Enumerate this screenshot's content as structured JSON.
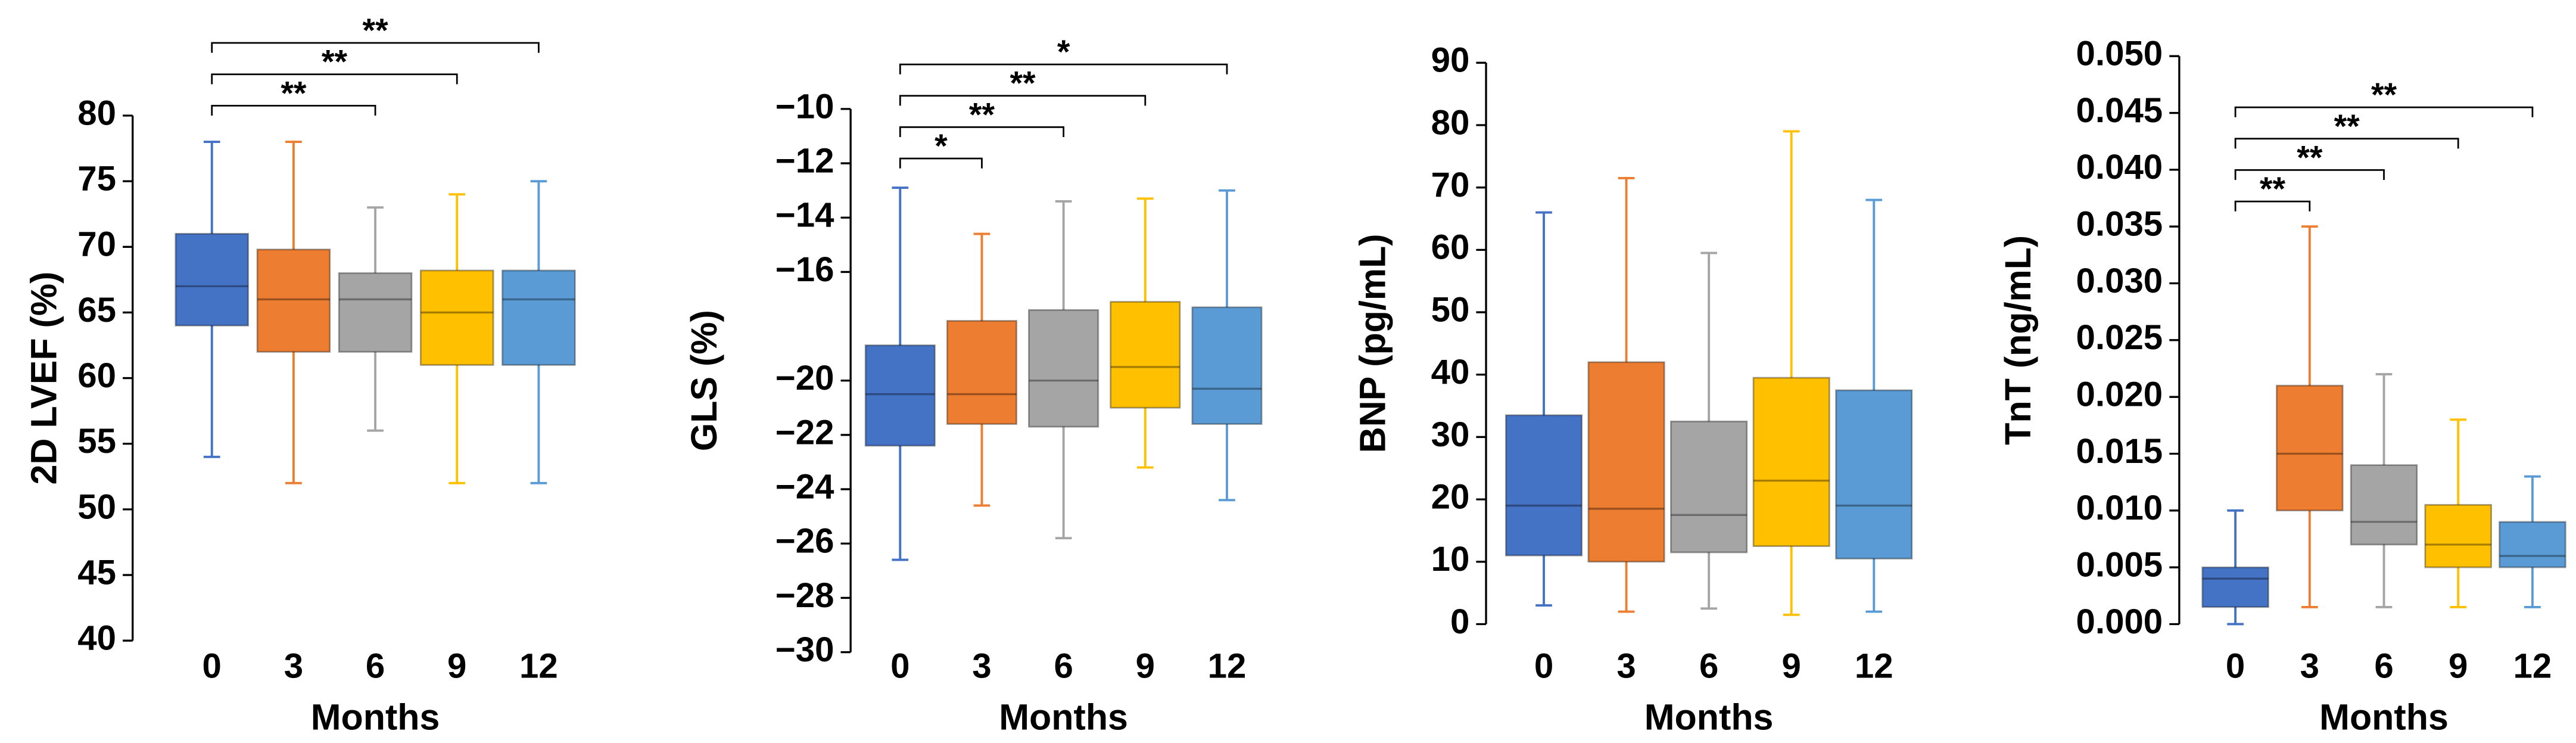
{
  "chart_data": [
    {
      "type": "box",
      "ylabel": "2D LVEF (%)",
      "xlabel": "Months",
      "categories": [
        "0",
        "3",
        "6",
        "9",
        "12"
      ],
      "colors": [
        "#4472c4",
        "#ed7d31",
        "#a5a5a5",
        "#ffc000",
        "#5b9bd5"
      ],
      "boxes": [
        {
          "min": 54,
          "q1": 64,
          "median": 67,
          "q3": 71,
          "max": 78
        },
        {
          "min": 52,
          "q1": 62,
          "median": 66,
          "q3": 69.8,
          "max": 78
        },
        {
          "min": 56,
          "q1": 62,
          "median": 66,
          "q3": 68,
          "max": 73
        },
        {
          "min": 52,
          "q1": 61,
          "median": 65,
          "q3": 68.2,
          "max": 74
        },
        {
          "min": 52,
          "q1": 61,
          "median": 66,
          "q3": 68.2,
          "max": 75
        }
      ],
      "ylim": [
        40,
        80
      ],
      "yticks": [
        40,
        45,
        50,
        55,
        60,
        65,
        70,
        75,
        80
      ],
      "annotations": [
        {
          "from": "0",
          "to": "6",
          "label": "**"
        },
        {
          "from": "0",
          "to": "9",
          "label": "**"
        },
        {
          "from": "0",
          "to": "12",
          "label": "**"
        }
      ]
    },
    {
      "type": "box",
      "ylabel": "GLS (%)",
      "xlabel": "Months",
      "categories": [
        "0",
        "3",
        "6",
        "9",
        "12"
      ],
      "colors": [
        "#4472c4",
        "#ed7d31",
        "#a5a5a5",
        "#ffc000",
        "#5b9bd5"
      ],
      "boxes": [
        {
          "min": -26.6,
          "q1": -22.4,
          "median": -20.5,
          "q3": -18.7,
          "max": -12.9
        },
        {
          "min": -24.6,
          "q1": -21.6,
          "median": -20.5,
          "q3": -17.8,
          "max": -14.6
        },
        {
          "min": -25.8,
          "q1": -21.7,
          "median": -20,
          "q3": -17.4,
          "max": -13.4
        },
        {
          "min": -23.2,
          "q1": -21,
          "median": -19.5,
          "q3": -17.1,
          "max": -13.3
        },
        {
          "min": -24.4,
          "q1": -21.6,
          "median": -20.3,
          "q3": -17.3,
          "max": -13
        }
      ],
      "ylim": [
        -30,
        -10
      ],
      "yticks": [
        {
          "value": -30,
          "label": "−30"
        },
        {
          "value": -28,
          "label": "−28"
        },
        {
          "value": -26,
          "label": "−26"
        },
        {
          "value": -24,
          "label": "−24"
        },
        {
          "value": -22,
          "label": "−22"
        },
        {
          "value": -20,
          "label": "−20"
        },
        {
          "value": -16,
          "label": "−16"
        },
        {
          "value": -14,
          "label": "−14"
        },
        {
          "value": -12,
          "label": "−12"
        },
        {
          "value": -10,
          "label": "−10"
        }
      ],
      "annotations": [
        {
          "from": "0",
          "to": "3",
          "label": "*"
        },
        {
          "from": "0",
          "to": "6",
          "label": "**"
        },
        {
          "from": "0",
          "to": "9",
          "label": "**"
        },
        {
          "from": "0",
          "to": "12",
          "label": "*"
        }
      ]
    },
    {
      "type": "box",
      "ylabel": "BNP (pg/mL)",
      "xlabel": "Months",
      "categories": [
        "0",
        "3",
        "6",
        "9",
        "12"
      ],
      "colors": [
        "#4472c4",
        "#ed7d31",
        "#a5a5a5",
        "#ffc000",
        "#5b9bd5"
      ],
      "boxes": [
        {
          "min": 3,
          "q1": 11,
          "median": 19,
          "q3": 33.5,
          "max": 66
        },
        {
          "min": 2,
          "q1": 10,
          "median": 18.5,
          "q3": 42,
          "max": 71.5
        },
        {
          "min": 2.5,
          "q1": 11.5,
          "median": 17.5,
          "q3": 32.5,
          "max": 59.5
        },
        {
          "min": 1.5,
          "q1": 12.5,
          "median": 23,
          "q3": 39.5,
          "max": 79
        },
        {
          "min": 2,
          "q1": 10.5,
          "median": 19,
          "q3": 37.5,
          "max": 68
        }
      ],
      "ylim": [
        0,
        90
      ],
      "yticks": [
        0,
        10,
        20,
        30,
        40,
        50,
        60,
        70,
        80,
        90
      ],
      "annotations": []
    },
    {
      "type": "box",
      "ylabel": "TnT (ng/mL)",
      "xlabel": "Months",
      "categories": [
        "0",
        "3",
        "6",
        "9",
        "12"
      ],
      "colors": [
        "#4472c4",
        "#ed7d31",
        "#a5a5a5",
        "#ffc000",
        "#5b9bd5"
      ],
      "boxes": [
        {
          "min": 0,
          "q1": 0.0015,
          "median": 0.004,
          "q3": 0.005,
          "max": 0.01
        },
        {
          "min": 0.0015,
          "q1": 0.01,
          "median": 0.015,
          "q3": 0.021,
          "max": 0.035
        },
        {
          "min": 0.0015,
          "q1": 0.007,
          "median": 0.009,
          "q3": 0.014,
          "max": 0.022
        },
        {
          "min": 0.0015,
          "q1": 0.005,
          "median": 0.007,
          "q3": 0.0105,
          "max": 0.018
        },
        {
          "min": 0.0015,
          "q1": 0.005,
          "median": 0.006,
          "q3": 0.009,
          "max": 0.013
        }
      ],
      "ylim": [
        0,
        0.05
      ],
      "yticks": [
        {
          "value": 0,
          "label": "0.000"
        },
        {
          "value": 0.005,
          "label": "0.005"
        },
        {
          "value": 0.01,
          "label": "0.010"
        },
        {
          "value": 0.015,
          "label": "0.015"
        },
        {
          "value": 0.02,
          "label": "0.020"
        },
        {
          "value": 0.025,
          "label": "0.025"
        },
        {
          "value": 0.03,
          "label": "0.030"
        },
        {
          "value": 0.035,
          "label": "0.035"
        },
        {
          "value": 0.04,
          "label": "0.040"
        },
        {
          "value": 0.045,
          "label": "0.045"
        },
        {
          "value": 0.05,
          "label": "0.050"
        }
      ],
      "annotations": [
        {
          "from": "0",
          "to": "3",
          "label": "**"
        },
        {
          "from": "0",
          "to": "6",
          "label": "**"
        },
        {
          "from": "0",
          "to": "9",
          "label": "**"
        },
        {
          "from": "0",
          "to": "12",
          "label": "**"
        }
      ]
    }
  ]
}
